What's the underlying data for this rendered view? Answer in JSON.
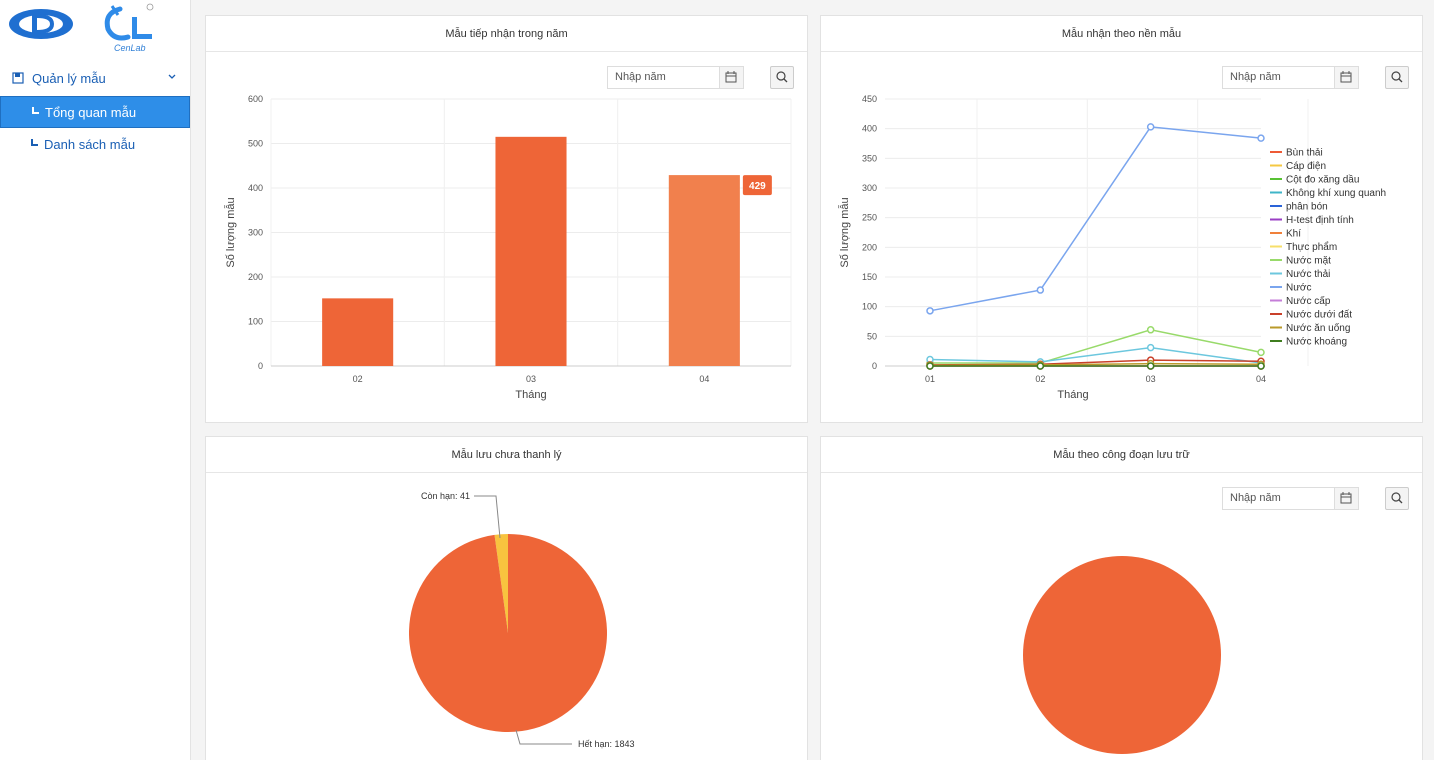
{
  "sidebar": {
    "logo_caption": "CenLab",
    "menu_parent": "Quản lý mẫu",
    "items": [
      {
        "label": "Tổng quan mẫu",
        "active": true
      },
      {
        "label": "Danh sách mẫu",
        "active": false
      }
    ]
  },
  "panels": {
    "received_year": {
      "title": "Mẫu tiếp nhận trong năm",
      "placeholder": "Nhập năm",
      "chart_data": {
        "type": "bar",
        "categories": [
          "02",
          "03",
          "04"
        ],
        "values": [
          152,
          515,
          429
        ],
        "xlabel": "Tháng",
        "ylabel": "Số lượng mẫu",
        "ylim": [
          0,
          600
        ],
        "yticks": [
          0,
          100,
          200,
          300,
          400,
          500,
          600
        ],
        "tooltip": "429",
        "colors": [
          "#ee6537",
          "#ee6537",
          "#f1804d"
        ]
      }
    },
    "by_matrix": {
      "title": "Mẫu nhận theo nền mẫu",
      "placeholder": "Nhập năm",
      "chart_data": {
        "type": "line",
        "x": [
          "01",
          "02",
          "03",
          "04"
        ],
        "xlabel": "Tháng",
        "ylabel": "Số lượng mẫu",
        "ylim": [
          0,
          450
        ],
        "yticks": [
          0,
          50,
          100,
          150,
          200,
          250,
          300,
          350,
          400,
          450
        ],
        "series": [
          {
            "name": "Bùn thải",
            "color": "#ee5a35",
            "values": [
              0,
              0,
              0,
              0
            ]
          },
          {
            "name": "Cáp điện",
            "color": "#f5c842",
            "values": [
              0,
              0,
              0,
              0
            ]
          },
          {
            "name": "Cột đo xăng dầu",
            "color": "#58c234",
            "values": [
              0,
              0,
              0,
              0
            ]
          },
          {
            "name": "Không khí xung quanh",
            "color": "#3fb5c8",
            "values": [
              0,
              0,
              0,
              0
            ]
          },
          {
            "name": "phân bón",
            "color": "#2a63d8",
            "values": [
              0,
              0,
              0,
              0
            ]
          },
          {
            "name": "H-test định tính",
            "color": "#9a3fc4",
            "values": [
              0,
              0,
              0,
              0
            ]
          },
          {
            "name": "Khí",
            "color": "#f0803a",
            "values": [
              0,
              0,
              0,
              0
            ]
          },
          {
            "name": "Thực phẩm",
            "color": "#f7df6a",
            "values": [
              0,
              0,
              0,
              0
            ]
          },
          {
            "name": "Nước mặt",
            "color": "#98da6a",
            "values": [
              5,
              5,
              61,
              23
            ]
          },
          {
            "name": "Nước thải",
            "color": "#6cc7de",
            "values": [
              11,
              7,
              31,
              5
            ]
          },
          {
            "name": "Nước",
            "color": "#7aa5ee",
            "values": [
              93,
              128,
              403,
              384
            ]
          },
          {
            "name": "Nước cấp",
            "color": "#c57ed8",
            "values": [
              0,
              0,
              0,
              0
            ]
          },
          {
            "name": "Nước dưới đất",
            "color": "#c9402a",
            "values": [
              2,
              3,
              10,
              8
            ]
          },
          {
            "name": "Nước ăn uống",
            "color": "#b99a2a",
            "values": [
              1,
              2,
              4,
              3
            ]
          },
          {
            "name": "Nước khoáng",
            "color": "#3f7d1f",
            "values": [
              0,
              0,
              0,
              0
            ]
          }
        ]
      }
    },
    "unliquidated": {
      "title": "Mẫu lưu chưa thanh lý",
      "chart_data": {
        "type": "pie",
        "slices": [
          {
            "label": "Còn hạn: 41",
            "value": 41,
            "color": "#f8c33f"
          },
          {
            "label": "Hết hạn: 1843",
            "value": 1843,
            "color": "#ee6537"
          }
        ]
      }
    },
    "by_stage": {
      "title": "Mẫu theo công đoạn lưu trữ",
      "placeholder": "Nhập năm",
      "chart_data": {
        "type": "pie",
        "slices": [
          {
            "value": 1,
            "color": "#ee6537"
          }
        ]
      }
    }
  }
}
